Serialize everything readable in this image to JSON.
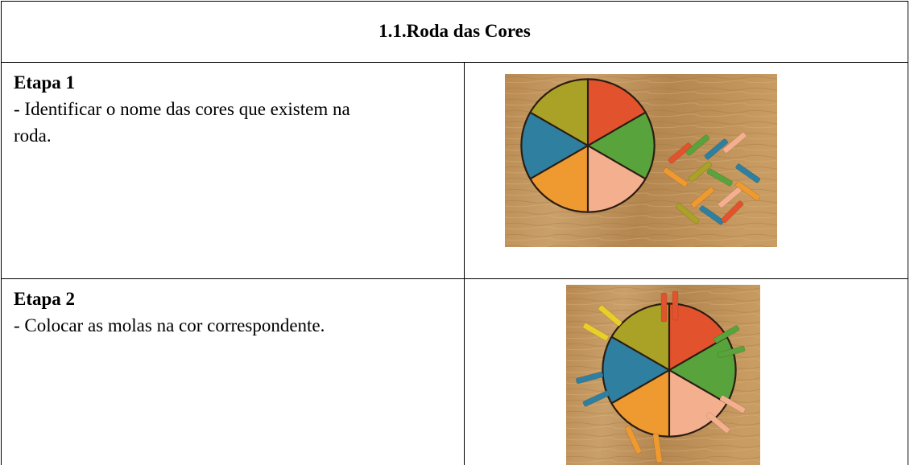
{
  "header": {
    "title": "1.1.Roda das Cores"
  },
  "rows": [
    {
      "title": "Etapa 1",
      "text": "- Identificar o nome das cores que existem na roda."
    },
    {
      "title": "Etapa 2",
      "text": "- Colocar as molas na cor correspondente."
    }
  ]
}
